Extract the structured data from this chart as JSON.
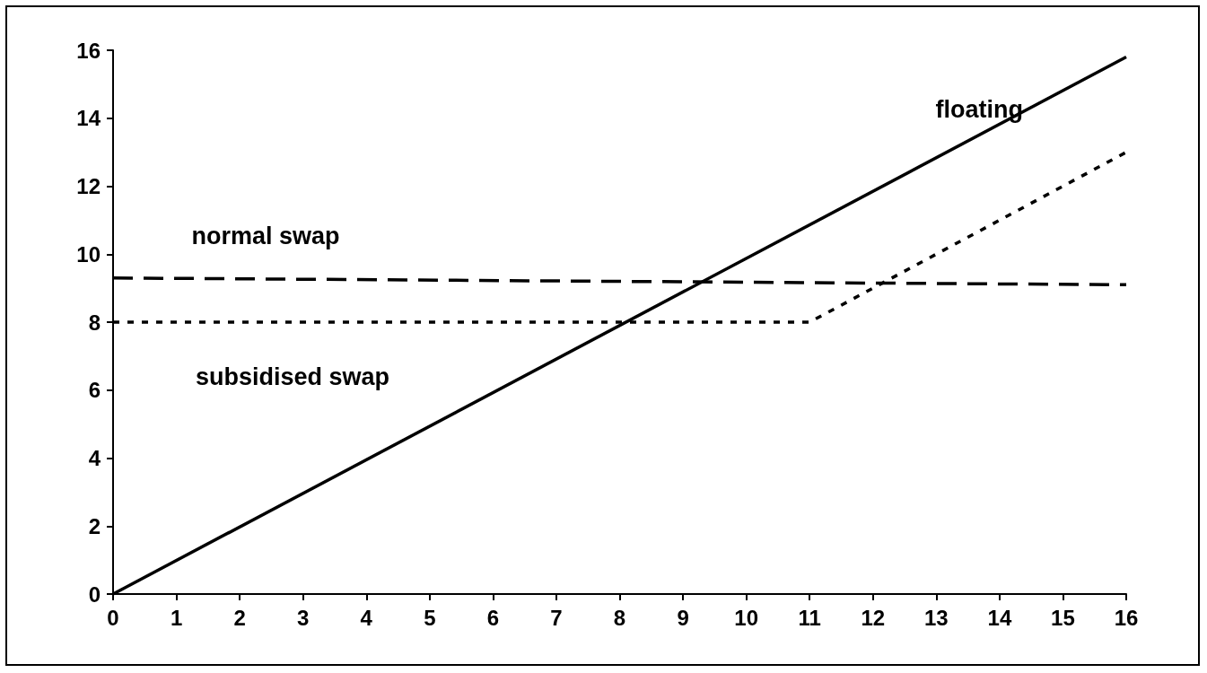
{
  "chart_data": {
    "type": "line",
    "xlim": [
      0,
      16
    ],
    "xticks": [
      0,
      1,
      2,
      3,
      4,
      5,
      6,
      7,
      8,
      9,
      10,
      11,
      12,
      13,
      14,
      15,
      16
    ],
    "ylim": [
      0,
      16
    ],
    "yticks": [
      0,
      2,
      4,
      6,
      8,
      10,
      12,
      14,
      16
    ],
    "grid": false,
    "marker": "none",
    "series": [
      {
        "name": "floating",
        "color": "#000000",
        "line_style": "solid",
        "x": [
          0,
          16
        ],
        "values": [
          0,
          15.8
        ]
      },
      {
        "name": "normal swap",
        "color": "#000000",
        "line_style": "dashed",
        "x": [
          0,
          16
        ],
        "values": [
          9.3,
          9.1
        ]
      },
      {
        "name": "subsidised swap",
        "color": "#000000",
        "line_style": "dotted",
        "x": [
          0,
          11,
          16
        ],
        "values": [
          8,
          8,
          13
        ]
      }
    ]
  }
}
